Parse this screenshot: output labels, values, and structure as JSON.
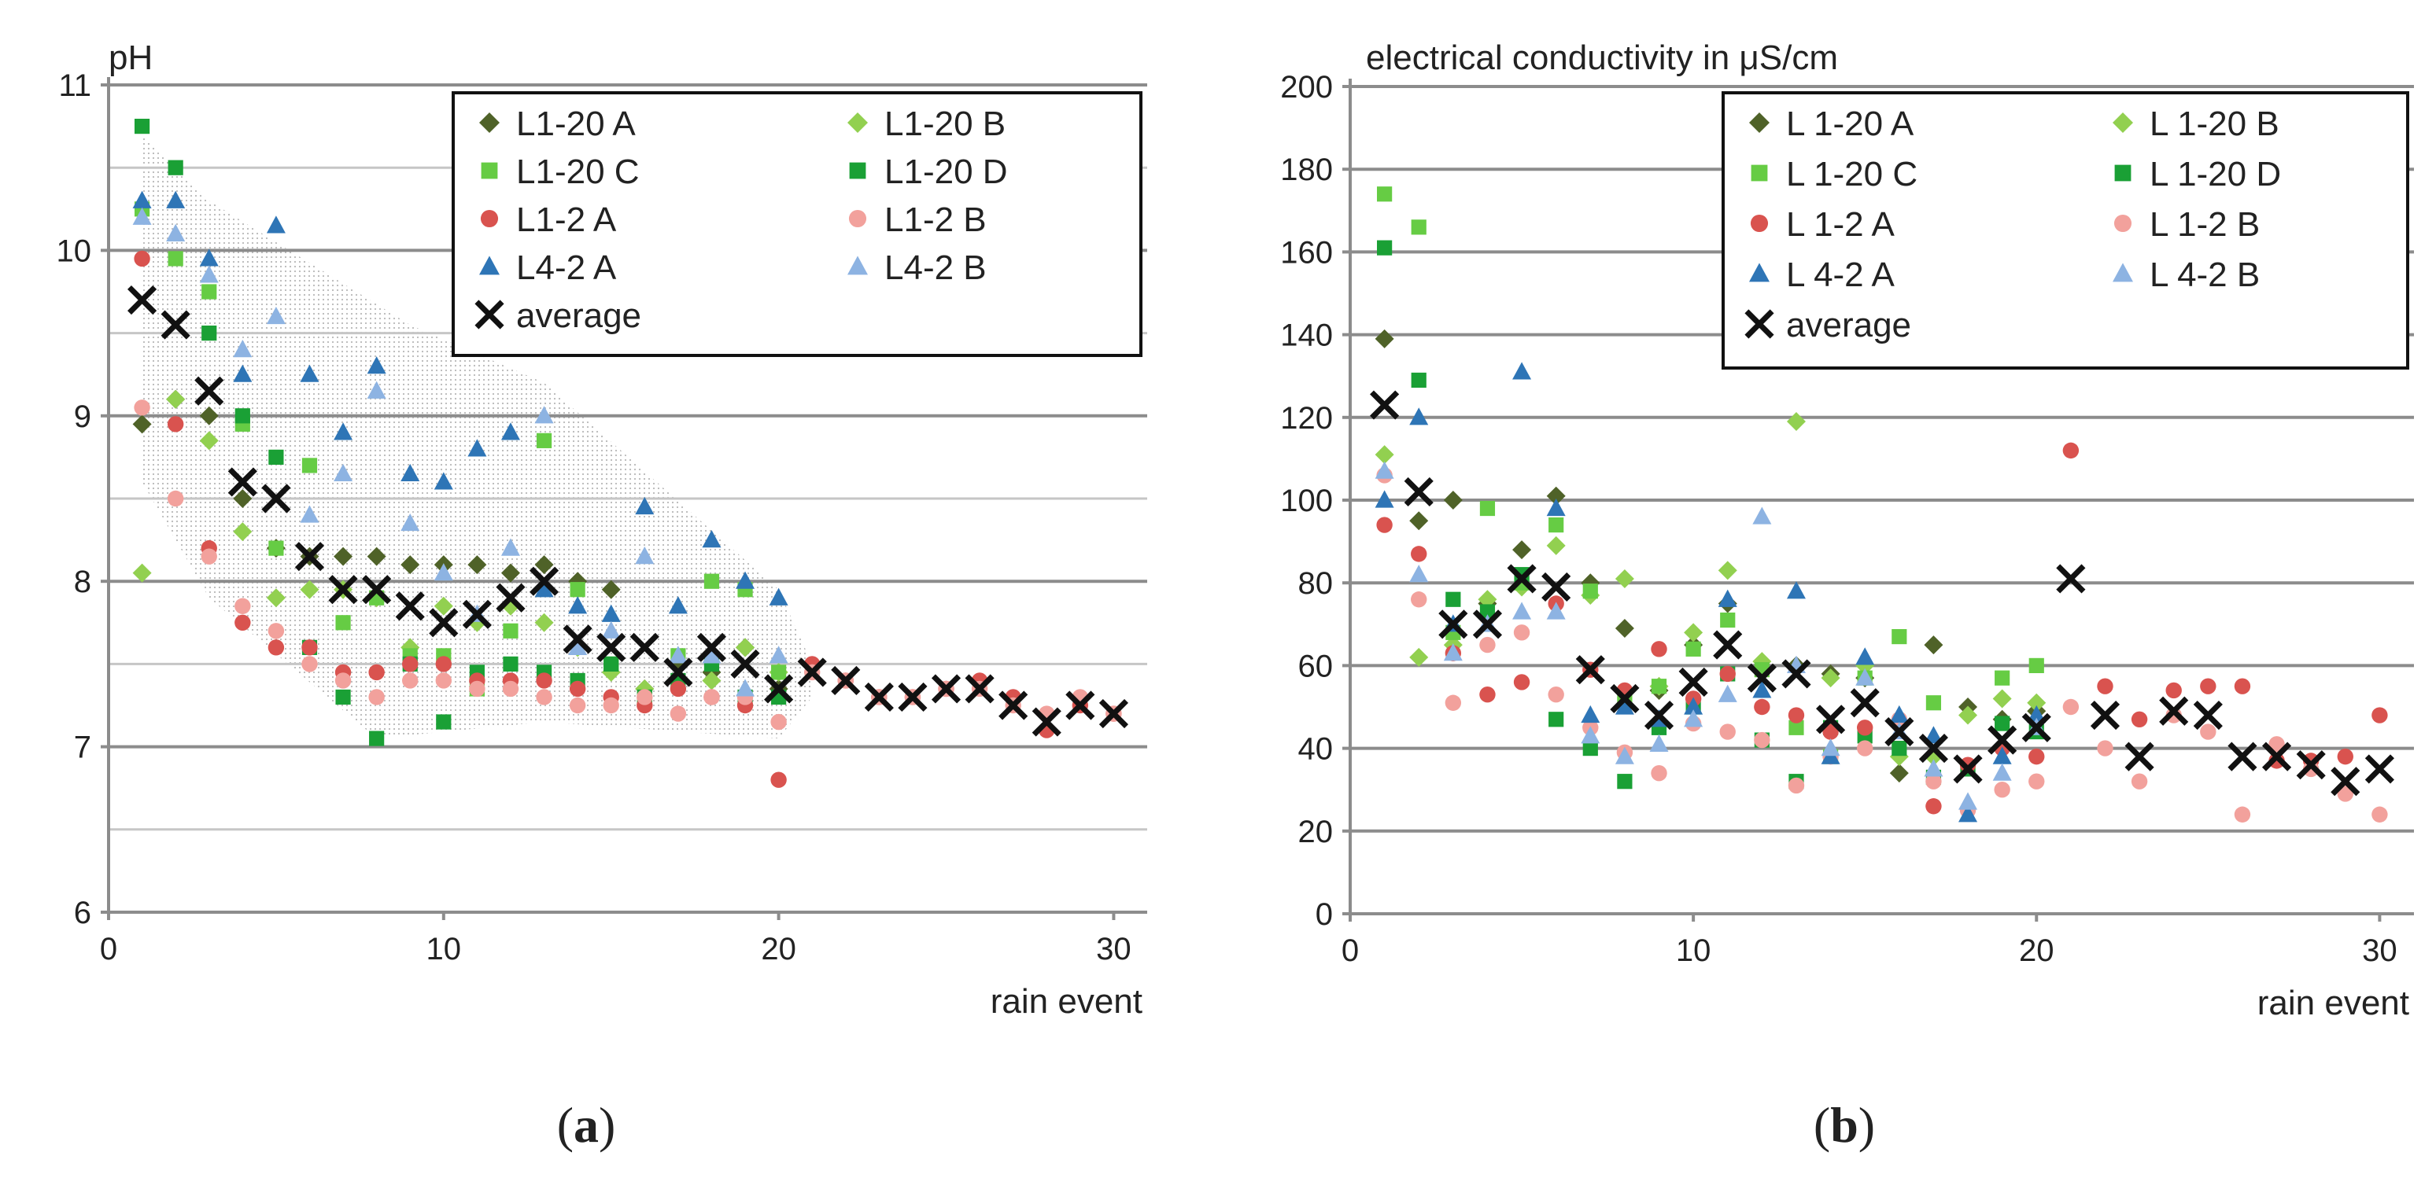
{
  "chart_data": [
    {
      "type": "scatter",
      "panel_label": "a",
      "ylabel": "pH",
      "xlabel": "rain event",
      "xlim": [
        0,
        31
      ],
      "ylim": [
        6,
        11
      ],
      "xticks": [
        0,
        10,
        20,
        30
      ],
      "yticks": [
        6,
        7,
        8,
        9,
        10,
        11
      ],
      "major_grid": [
        7,
        8,
        9,
        10,
        11
      ],
      "minor_grid": [
        6.5,
        7.5,
        8.5,
        9.5,
        10.5
      ],
      "legend_position": "top-right",
      "legend_columns": 2,
      "series": [
        {
          "name": "L1-20 A",
          "marker": "diamond",
          "color": "#4f6228",
          "x": [
            1,
            2,
            3,
            4,
            5,
            6,
            7,
            8,
            9,
            10,
            11,
            12,
            13,
            14,
            15,
            16,
            17,
            18,
            19,
            20
          ],
          "y": [
            8.95,
            9.1,
            9.0,
            8.5,
            8.2,
            8.15,
            8.15,
            8.15,
            8.1,
            8.1,
            8.1,
            8.05,
            8.1,
            8.0,
            7.95,
            7.35,
            7.5,
            7.45,
            7.6,
            7.35
          ]
        },
        {
          "name": "L1-20 B",
          "marker": "diamond",
          "color": "#92d050",
          "x": [
            1,
            2,
            3,
            4,
            5,
            6,
            7,
            8,
            9,
            10,
            11,
            12,
            13,
            14,
            15,
            16,
            17,
            18,
            19,
            20
          ],
          "y": [
            8.05,
            9.1,
            8.85,
            8.3,
            7.9,
            7.95,
            7.95,
            7.9,
            7.6,
            7.85,
            7.75,
            7.85,
            7.75,
            7.6,
            7.45,
            7.35,
            7.4,
            7.4,
            7.6,
            7.45
          ]
        },
        {
          "name": "L1-20 C",
          "marker": "square",
          "color": "#66cc44",
          "x": [
            1,
            2,
            3,
            4,
            5,
            6,
            7,
            8,
            9,
            10,
            11,
            12,
            13,
            14,
            15,
            16,
            17,
            18,
            19,
            20
          ],
          "y": [
            10.25,
            9.95,
            9.75,
            8.95,
            8.2,
            8.7,
            7.75,
            7.9,
            7.55,
            7.55,
            7.35,
            7.7,
            8.85,
            7.95,
            7.5,
            7.3,
            7.55,
            8.0,
            7.95,
            7.45
          ]
        },
        {
          "name": "L1-20 D",
          "marker": "square",
          "color": "#1aa035",
          "x": [
            1,
            2,
            3,
            4,
            5,
            6,
            7,
            8,
            9,
            10,
            11,
            12,
            13,
            14,
            15,
            16,
            17,
            18,
            19,
            20
          ],
          "y": [
            10.75,
            10.5,
            9.5,
            9.0,
            8.75,
            7.6,
            7.3,
            7.05,
            7.5,
            7.15,
            7.45,
            7.5,
            7.45,
            7.4,
            7.5,
            7.3,
            7.4,
            7.5,
            7.3,
            7.3
          ]
        },
        {
          "name": "L1-2 A",
          "marker": "circle",
          "color": "#d9534f",
          "x": [
            1,
            2,
            3,
            4,
            5,
            6,
            7,
            8,
            9,
            10,
            11,
            12,
            13,
            14,
            15,
            16,
            17,
            18,
            19,
            20,
            21,
            22,
            23,
            24,
            25,
            26,
            27,
            28,
            29,
            30
          ],
          "y": [
            9.95,
            8.95,
            8.2,
            7.75,
            7.6,
            7.6,
            7.45,
            7.45,
            7.5,
            7.5,
            7.4,
            7.4,
            7.4,
            7.35,
            7.3,
            7.25,
            7.35,
            7.3,
            7.25,
            6.8,
            7.5,
            7.4,
            7.3,
            7.3,
            7.35,
            7.4,
            7.3,
            7.1,
            7.25,
            7.2
          ]
        },
        {
          "name": "L1-2 B",
          "marker": "circle",
          "color": "#f2a19c",
          "x": [
            1,
            2,
            3,
            4,
            5,
            6,
            7,
            8,
            9,
            10,
            11,
            12,
            13,
            14,
            15,
            16,
            17,
            18,
            19,
            20,
            21,
            22,
            23,
            24,
            25,
            26,
            27,
            28,
            29,
            30
          ],
          "y": [
            9.05,
            8.5,
            8.15,
            7.85,
            7.7,
            7.5,
            7.4,
            7.3,
            7.4,
            7.4,
            7.35,
            7.35,
            7.3,
            7.25,
            7.25,
            7.3,
            7.2,
            7.3,
            7.3,
            7.15,
            7.45,
            7.4,
            7.3,
            7.3,
            7.35,
            7.35,
            7.25,
            7.2,
            7.3,
            7.2
          ]
        },
        {
          "name": "L4-2 A",
          "marker": "triangle",
          "color": "#2e75b6",
          "x": [
            1,
            2,
            3,
            4,
            5,
            6,
            7,
            8,
            9,
            10,
            11,
            12,
            13,
            14,
            15,
            16,
            17,
            18,
            19,
            20
          ],
          "y": [
            10.3,
            10.3,
            9.95,
            9.25,
            10.15,
            9.25,
            8.9,
            9.3,
            8.65,
            8.6,
            8.8,
            8.9,
            7.95,
            7.85,
            7.8,
            8.45,
            7.85,
            8.25,
            8.0,
            7.9
          ]
        },
        {
          "name": "L4-2 B",
          "marker": "triangle",
          "color": "#8db3e2",
          "x": [
            1,
            2,
            3,
            4,
            5,
            6,
            7,
            8,
            9,
            10,
            11,
            12,
            13,
            14,
            15,
            16,
            17,
            18,
            19,
            20
          ],
          "y": [
            10.2,
            10.1,
            9.85,
            9.4,
            9.6,
            8.4,
            8.65,
            9.15,
            8.35,
            8.05,
            7.8,
            8.2,
            9.0,
            7.6,
            7.7,
            8.15,
            7.55,
            7.55,
            7.35,
            7.55
          ]
        },
        {
          "name": "average",
          "marker": "x",
          "color": "#111111",
          "x": [
            1,
            2,
            3,
            4,
            5,
            6,
            7,
            8,
            9,
            10,
            11,
            12,
            13,
            14,
            15,
            16,
            17,
            18,
            19,
            20,
            21,
            22,
            23,
            24,
            25,
            26,
            27,
            28,
            29,
            30
          ],
          "y": [
            9.7,
            9.55,
            9.15,
            8.6,
            8.5,
            8.15,
            7.95,
            7.95,
            7.85,
            7.75,
            7.8,
            7.9,
            8.0,
            7.65,
            7.6,
            7.6,
            7.45,
            7.6,
            7.5,
            7.35,
            7.45,
            7.4,
            7.3,
            7.3,
            7.35,
            7.35,
            7.25,
            7.15,
            7.25,
            7.2
          ]
        }
      ]
    },
    {
      "type": "scatter",
      "panel_label": "b",
      "ylabel": "electrical conductivity  in μS/cm",
      "xlabel": "rain event",
      "xlim": [
        0,
        31
      ],
      "ylim": [
        0,
        200
      ],
      "xticks": [
        0,
        10,
        20,
        30
      ],
      "yticks": [
        0,
        20,
        40,
        60,
        80,
        100,
        120,
        140,
        160,
        180,
        200
      ],
      "major_grid": [
        20,
        40,
        60,
        80,
        100,
        120,
        140,
        160,
        180,
        200
      ],
      "minor_grid": [],
      "legend_position": "top-right",
      "legend_columns": 2,
      "series": [
        {
          "name": "L 1-20 A",
          "marker": "diamond",
          "color": "#4f6228",
          "x": [
            1,
            2,
            3,
            4,
            5,
            6,
            7,
            8,
            9,
            10,
            11,
            12,
            13,
            14,
            15,
            16,
            17,
            18,
            19,
            20
          ],
          "y": [
            139,
            95,
            100,
            75,
            88,
            101,
            80,
            69,
            54,
            65,
            75,
            59,
            60,
            58,
            57,
            34,
            65,
            50,
            47,
            49
          ]
        },
        {
          "name": "L 1-20 B",
          "marker": "diamond",
          "color": "#92d050",
          "x": [
            1,
            2,
            3,
            4,
            5,
            6,
            7,
            8,
            9,
            10,
            11,
            12,
            13,
            14,
            15,
            16,
            17,
            18,
            19,
            20
          ],
          "y": [
            111,
            62,
            65,
            76,
            79,
            89,
            77,
            81,
            55,
            68,
            83,
            61,
            119,
            57,
            60,
            38,
            38,
            48,
            52,
            51
          ]
        },
        {
          "name": "L 1-20 C",
          "marker": "square",
          "color": "#66cc44",
          "x": [
            1,
            2,
            3,
            4,
            5,
            6,
            7,
            8,
            9,
            10,
            11,
            12,
            13,
            14,
            15,
            16,
            17,
            18,
            19,
            20
          ],
          "y": [
            174,
            166,
            68,
            98,
            80,
            94,
            78,
            52,
            55,
            64,
            71,
            59,
            45,
            38,
            57,
            67,
            51,
            35,
            57,
            60
          ]
        },
        {
          "name": "L 1-20 D",
          "marker": "square",
          "color": "#1aa035",
          "x": [
            1,
            2,
            3,
            4,
            5,
            6,
            7,
            8,
            9,
            10,
            11,
            12,
            13,
            14,
            15,
            16,
            17,
            18,
            19,
            20
          ],
          "y": [
            161,
            129,
            76,
            73,
            82,
            47,
            40,
            32,
            45,
            50,
            58,
            42,
            32,
            45,
            43,
            40,
            33,
            35,
            46,
            44
          ]
        },
        {
          "name": "L 1-2 A",
          "marker": "circle",
          "color": "#d9534f",
          "x": [
            1,
            2,
            3,
            4,
            5,
            6,
            7,
            8,
            9,
            10,
            11,
            12,
            13,
            14,
            15,
            16,
            17,
            18,
            19,
            20,
            21,
            22,
            23,
            24,
            25,
            26,
            27,
            28,
            29,
            30
          ],
          "y": [
            94,
            87,
            63,
            53,
            56,
            75,
            59,
            54,
            64,
            52,
            58,
            50,
            48,
            44,
            45,
            46,
            26,
            36,
            40,
            38,
            112,
            55,
            47,
            54,
            55,
            55,
            37,
            37,
            38,
            48
          ]
        },
        {
          "name": "L 1-2 B",
          "marker": "circle",
          "color": "#f2a19c",
          "x": [
            1,
            2,
            3,
            4,
            5,
            6,
            7,
            8,
            9,
            10,
            11,
            12,
            13,
            14,
            15,
            16,
            17,
            18,
            19,
            20,
            21,
            22,
            23,
            24,
            25,
            26,
            27,
            28,
            29,
            30
          ],
          "y": [
            106,
            76,
            51,
            65,
            68,
            53,
            45,
            39,
            34,
            46,
            44,
            42,
            31,
            38,
            40,
            47,
            32,
            25,
            30,
            32,
            50,
            40,
            32,
            48,
            44,
            24,
            41,
            35,
            29,
            24
          ]
        },
        {
          "name": "L 4-2 A",
          "marker": "triangle",
          "color": "#2e75b6",
          "x": [
            1,
            2,
            3,
            4,
            5,
            6,
            7,
            8,
            9,
            10,
            11,
            12,
            13,
            14,
            15,
            16,
            17,
            18,
            19,
            20
          ],
          "y": [
            100,
            120,
            70,
            70,
            131,
            98,
            48,
            50,
            47,
            50,
            76,
            54,
            78,
            38,
            62,
            48,
            43,
            24,
            38,
            48
          ]
        },
        {
          "name": "L 4-2 B",
          "marker": "triangle",
          "color": "#8db3e2",
          "x": [
            1,
            2,
            3,
            4,
            5,
            6,
            7,
            8,
            9,
            10,
            11,
            12,
            13,
            14,
            15,
            16,
            17,
            18,
            19,
            20
          ],
          "y": [
            107,
            82,
            63,
            70,
            73,
            73,
            43,
            38,
            41,
            47,
            53,
            96,
            60,
            40,
            57,
            44,
            35,
            27,
            34,
            45
          ]
        },
        {
          "name": "average",
          "marker": "x",
          "color": "#111111",
          "x": [
            1,
            2,
            3,
            4,
            5,
            6,
            7,
            8,
            9,
            10,
            11,
            12,
            13,
            14,
            15,
            16,
            17,
            18,
            19,
            20,
            21,
            22,
            23,
            24,
            25,
            26,
            27,
            28,
            29,
            30
          ],
          "y": [
            123,
            102,
            70,
            70,
            81,
            79,
            59,
            52,
            48,
            56,
            65,
            57,
            58,
            47,
            51,
            44,
            40,
            35,
            42,
            45,
            81,
            48,
            38,
            49,
            48,
            38,
            38,
            36,
            32,
            35
          ]
        }
      ]
    }
  ]
}
